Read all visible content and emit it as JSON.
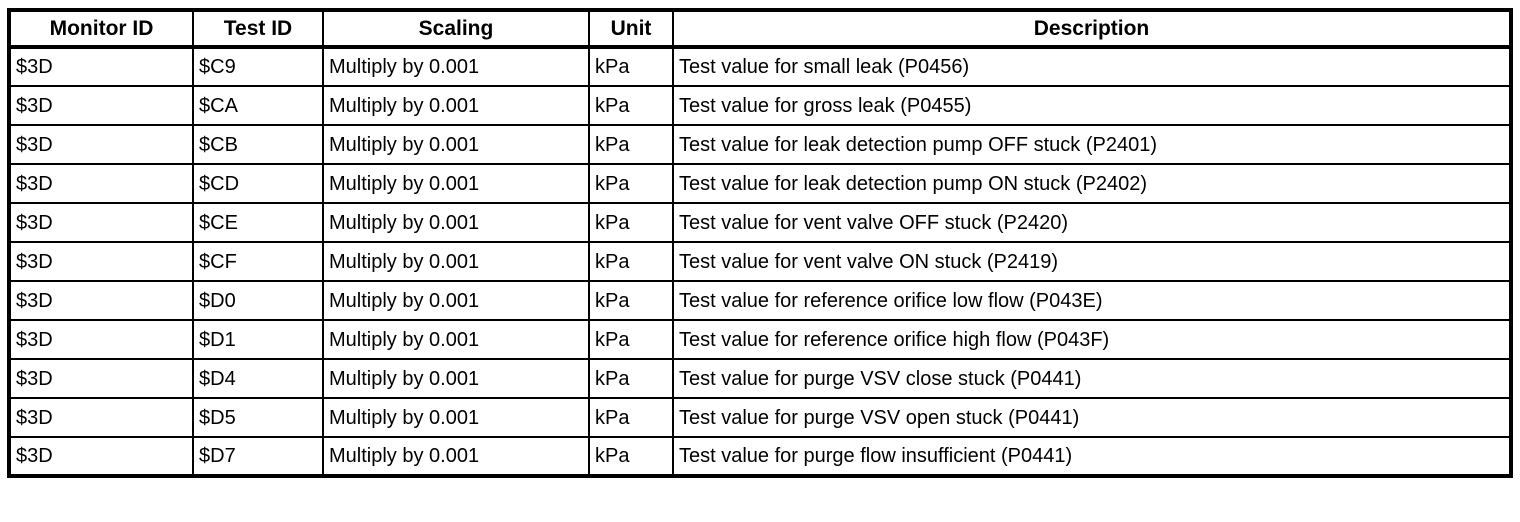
{
  "table": {
    "columns": [
      "Monitor ID",
      "Test ID",
      "Scaling",
      "Unit",
      "Description"
    ],
    "rows": [
      [
        "$3D",
        "$C9",
        "Multiply by 0.001",
        "kPa",
        "Test value for small leak (P0456)"
      ],
      [
        "$3D",
        "$CA",
        "Multiply by 0.001",
        "kPa",
        "Test value for gross leak (P0455)"
      ],
      [
        "$3D",
        "$CB",
        "Multiply by 0.001",
        "kPa",
        "Test value for leak detection pump OFF stuck (P2401)"
      ],
      [
        "$3D",
        "$CD",
        "Multiply by 0.001",
        "kPa",
        "Test value for leak detection pump ON stuck (P2402)"
      ],
      [
        "$3D",
        "$CE",
        "Multiply by 0.001",
        "kPa",
        "Test value for vent valve OFF stuck (P2420)"
      ],
      [
        "$3D",
        "$CF",
        "Multiply by 0.001",
        "kPa",
        "Test value for vent valve ON stuck (P2419)"
      ],
      [
        "$3D",
        "$D0",
        "Multiply by 0.001",
        "kPa",
        "Test value for reference orifice low flow (P043E)"
      ],
      [
        "$3D",
        "$D1",
        "Multiply by 0.001",
        "kPa",
        "Test value for reference orifice high flow (P043F)"
      ],
      [
        "$3D",
        "$D4",
        "Multiply by 0.001",
        "kPa",
        "Test value for purge VSV close stuck (P0441)"
      ],
      [
        "$3D",
        "$D5",
        "Multiply by 0.001",
        "kPa",
        "Test value for purge VSV open stuck (P0441)"
      ],
      [
        "$3D",
        "$D7",
        "Multiply by 0.001",
        "kPa",
        "Test value for purge flow insufficient (P0441)"
      ]
    ]
  },
  "colors": {
    "border": "#000000",
    "text": "#000000",
    "background": "#ffffff"
  }
}
